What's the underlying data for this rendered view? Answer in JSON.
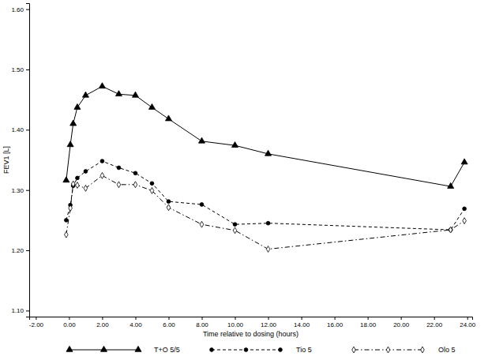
{
  "chart_data": {
    "type": "line",
    "x_label": "Time relative to dosing (hours)",
    "y_label": "FEV1 [L]",
    "x": [
      -0.17,
      0.08,
      0.25,
      0.5,
      1,
      2,
      3,
      4,
      5,
      6,
      8,
      10,
      12,
      23,
      23.83
    ],
    "series": [
      {
        "name": "T+O 5/5",
        "color": "#000000",
        "marker": "triangle",
        "line_style": "solid",
        "values": [
          1.316,
          1.375,
          1.41,
          1.437,
          1.457,
          1.472,
          1.459,
          1.457,
          1.437,
          1.418,
          1.381,
          1.374,
          1.36,
          1.306,
          1.346
        ]
      },
      {
        "name": "Tio 5",
        "color": "#000000",
        "marker": "circle",
        "line_style": "dashed",
        "values": [
          1.25,
          1.275,
          1.307,
          1.32,
          1.331,
          1.348,
          1.337,
          1.328,
          1.311,
          1.281,
          1.276,
          1.243,
          1.245,
          1.234,
          1.269
        ]
      },
      {
        "name": "Olo 5",
        "color": "#000000",
        "marker": "diamond",
        "line_style": "dashdot",
        "values": [
          1.226,
          1.27,
          1.31,
          1.308,
          1.303,
          1.324,
          1.309,
          1.309,
          1.299,
          1.271,
          1.243,
          1.233,
          1.202,
          1.234,
          1.249
        ]
      }
    ],
    "xlim": [
      -2.4,
      24.3
    ],
    "ylim": [
      1.09,
      1.61
    ],
    "xticks": [
      {
        "value": -2,
        "label": "-2.00"
      },
      {
        "value": 0,
        "label": "0.00"
      },
      {
        "value": 2,
        "label": "2.00"
      },
      {
        "value": 4,
        "label": "4.00"
      },
      {
        "value": 6,
        "label": "6.00"
      },
      {
        "value": 8,
        "label": "8.00"
      },
      {
        "value": 10,
        "label": "10.00"
      },
      {
        "value": 12,
        "label": "12.00"
      },
      {
        "value": 14,
        "label": "14.00"
      },
      {
        "value": 16,
        "label": "16.00"
      },
      {
        "value": 18,
        "label": "18.00"
      },
      {
        "value": 20,
        "label": "20.00"
      },
      {
        "value": 22,
        "label": "22.00"
      },
      {
        "value": 24,
        "label": "24.00"
      }
    ],
    "yticks": [
      {
        "value": 1.1,
        "label": "1.10"
      },
      {
        "value": 1.2,
        "label": "1.20"
      },
      {
        "value": 1.3,
        "label": "1.30"
      },
      {
        "value": 1.4,
        "label": "1.40"
      },
      {
        "value": 1.5,
        "label": "1.50"
      },
      {
        "value": 1.6,
        "label": "1.60"
      }
    ],
    "grid": false,
    "legend": "bottom"
  }
}
